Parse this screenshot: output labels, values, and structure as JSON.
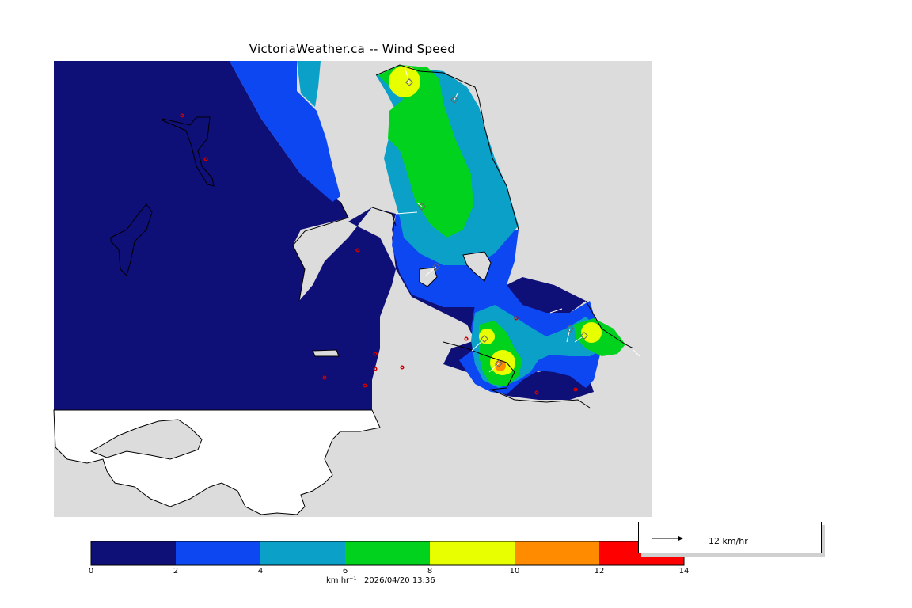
{
  "title": "VictoriaWeather.ca -- Wind Speed",
  "footer": {
    "units": "km hr⁻¹",
    "timestamp": "2026/04/20 13:36"
  },
  "colorbar": {
    "ticks": [
      "0",
      "2",
      "4",
      "6",
      "8",
      "10",
      "12",
      "14"
    ],
    "colors": [
      "#0f0f78",
      "#0d47f2",
      "#0aa0c8",
      "#00d21e",
      "#e8ff00",
      "#ff8c00",
      "#ff0000"
    ]
  },
  "wind_key": {
    "label": "12 km/hr"
  },
  "colors": {
    "land": "#dcdcdc",
    "unmapped_land": "#ffffff",
    "station_marker": "#cc0000"
  }
}
